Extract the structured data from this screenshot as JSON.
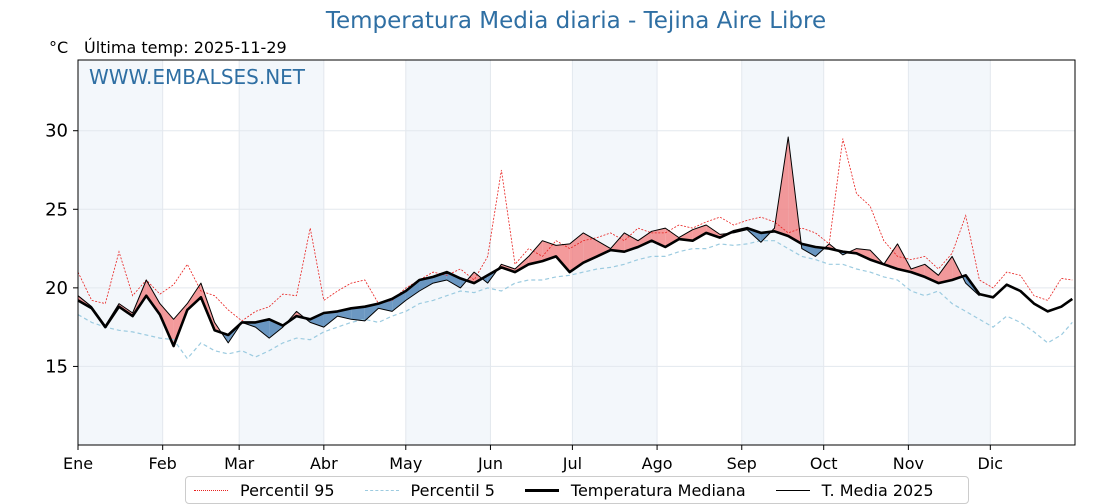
{
  "chart_data": {
    "type": "line",
    "title": "Temperatura Media diaria - Tejina Aire Libre",
    "ylabel": "°C",
    "subtitle": "Última temp: 2025-11-29",
    "watermark": "WWW.EMBALSES.NET",
    "ylim": [
      10,
      34.5
    ],
    "yticks": [
      15,
      20,
      25,
      30
    ],
    "xlim_days": [
      0,
      365
    ],
    "month_ticks": [
      {
        "label": "Ene",
        "day": 0
      },
      {
        "label": "Feb",
        "day": 31
      },
      {
        "label": "Mar",
        "day": 59
      },
      {
        "label": "Abr",
        "day": 90
      },
      {
        "label": "May",
        "day": 120
      },
      {
        "label": "Jun",
        "day": 151
      },
      {
        "label": "Jul",
        "day": 181
      },
      {
        "label": "Ago",
        "day": 212
      },
      {
        "label": "Sep",
        "day": 243
      },
      {
        "label": "Oct",
        "day": 273
      },
      {
        "label": "Nov",
        "day": 304
      },
      {
        "label": "Dic",
        "day": 334
      }
    ],
    "grid": true,
    "legend_position": "bottom-center",
    "day": [
      0,
      5,
      10,
      15,
      20,
      25,
      30,
      35,
      40,
      45,
      50,
      55,
      60,
      65,
      70,
      75,
      80,
      85,
      90,
      95,
      100,
      105,
      110,
      115,
      120,
      125,
      130,
      135,
      140,
      145,
      150,
      155,
      160,
      165,
      170,
      175,
      180,
      185,
      190,
      195,
      200,
      205,
      210,
      215,
      220,
      225,
      230,
      235,
      240,
      245,
      250,
      255,
      260,
      265,
      270,
      275,
      280,
      285,
      290,
      295,
      300,
      305,
      310,
      315,
      320,
      325,
      330,
      335,
      340,
      345,
      350,
      355,
      360,
      364
    ],
    "series": [
      {
        "name": "Percentil 95",
        "color": "#e8201e",
        "style": "dotted",
        "values": [
          21.0,
          19.2,
          19.0,
          22.3,
          19.5,
          20.5,
          19.6,
          20.2,
          21.5,
          19.8,
          19.5,
          18.6,
          17.9,
          18.5,
          18.8,
          19.6,
          19.5,
          23.8,
          19.2,
          19.8,
          20.3,
          20.5,
          19.0,
          19.2,
          20.0,
          20.5,
          21.0,
          20.8,
          21.2,
          20.5,
          22.0,
          27.5,
          21.5,
          22.5,
          22.0,
          23.0,
          22.5,
          23.0,
          23.2,
          23.5,
          23.0,
          23.8,
          23.5,
          23.5,
          24.0,
          23.8,
          24.2,
          24.5,
          24.0,
          24.3,
          24.5,
          24.2,
          23.5,
          23.8,
          23.5,
          22.8,
          29.5,
          26.0,
          25.2,
          23.0,
          22.0,
          21.8,
          22.0,
          21.2,
          22.2,
          24.6,
          20.5,
          20.0,
          21.0,
          20.8,
          19.5,
          19.2,
          20.6,
          20.5
        ]
      },
      {
        "name": "Percentil 5",
        "color": "#9ccbe0",
        "style": "dashed",
        "values": [
          18.3,
          17.8,
          17.5,
          17.3,
          17.2,
          17.0,
          16.8,
          16.7,
          15.5,
          16.5,
          16.0,
          15.8,
          16.0,
          15.6,
          16.0,
          16.5,
          16.8,
          16.7,
          17.2,
          17.5,
          17.8,
          18.0,
          17.8,
          18.2,
          18.5,
          19.0,
          19.2,
          19.5,
          19.8,
          19.7,
          20.0,
          19.8,
          20.3,
          20.5,
          20.5,
          20.7,
          20.8,
          21.0,
          21.2,
          21.3,
          21.5,
          21.8,
          22.0,
          22.0,
          22.3,
          22.5,
          22.5,
          22.8,
          22.7,
          22.8,
          23.0,
          23.0,
          22.5,
          22.0,
          21.8,
          21.5,
          21.5,
          21.2,
          21.0,
          20.7,
          20.5,
          19.8,
          19.5,
          19.8,
          19.0,
          18.5,
          18.0,
          17.5,
          18.2,
          17.8,
          17.2,
          16.5,
          17.0,
          17.8
        ]
      },
      {
        "name": "Temperatura Mediana",
        "color": "#000000",
        "style": "solid-thick",
        "values": [
          19.2,
          18.7,
          17.5,
          18.8,
          18.2,
          19.5,
          18.3,
          16.3,
          18.6,
          19.4,
          17.3,
          17.0,
          17.8,
          17.8,
          18.0,
          17.6,
          18.2,
          18.0,
          18.4,
          18.5,
          18.7,
          18.8,
          19.0,
          19.3,
          19.8,
          20.5,
          20.7,
          21.0,
          20.6,
          20.3,
          20.8,
          21.3,
          21.0,
          21.5,
          21.7,
          22.0,
          21.0,
          21.6,
          22.0,
          22.4,
          22.3,
          22.6,
          23.0,
          22.6,
          23.1,
          23.0,
          23.5,
          23.2,
          23.6,
          23.8,
          23.5,
          23.6,
          23.3,
          22.8,
          22.6,
          22.5,
          22.3,
          22.2,
          21.8,
          21.5,
          21.2,
          21.0,
          20.7,
          20.3,
          20.5,
          20.8,
          19.6,
          19.4,
          20.2,
          19.8,
          19.0,
          18.5,
          18.8,
          19.3
        ]
      },
      {
        "name": "T. Media 2025",
        "color": "#000000",
        "style": "solid-thin",
        "values": [
          19.5,
          18.8,
          17.6,
          19.0,
          18.4,
          20.5,
          19.0,
          18.0,
          19.0,
          20.3,
          17.8,
          16.5,
          17.8,
          17.5,
          16.8,
          17.5,
          18.5,
          17.8,
          17.5,
          18.2,
          18.0,
          17.9,
          18.7,
          18.5,
          19.2,
          19.8,
          20.3,
          20.5,
          20.0,
          21.0,
          20.3,
          21.5,
          21.2,
          22.0,
          23.0,
          22.7,
          22.8,
          23.5,
          23.0,
          22.5,
          23.5,
          23.0,
          23.6,
          23.8,
          23.2,
          23.7,
          24.0,
          23.4,
          23.5,
          23.7,
          22.9,
          23.8,
          29.6,
          22.5,
          22.0,
          22.8,
          22.1,
          22.5,
          22.4,
          21.5,
          22.8,
          21.2,
          21.5,
          20.8,
          22.0,
          20.3,
          19.5,
          null,
          null,
          null,
          null,
          null,
          null,
          null
        ]
      }
    ],
    "fill_above_color": "#f0787a",
    "fill_below_color": "#3b75ad"
  },
  "legend": {
    "items": [
      {
        "label": "Percentil 95"
      },
      {
        "label": "Percentil 5"
      },
      {
        "label": "Temperatura Mediana"
      },
      {
        "label": "T. Media 2025"
      }
    ]
  }
}
